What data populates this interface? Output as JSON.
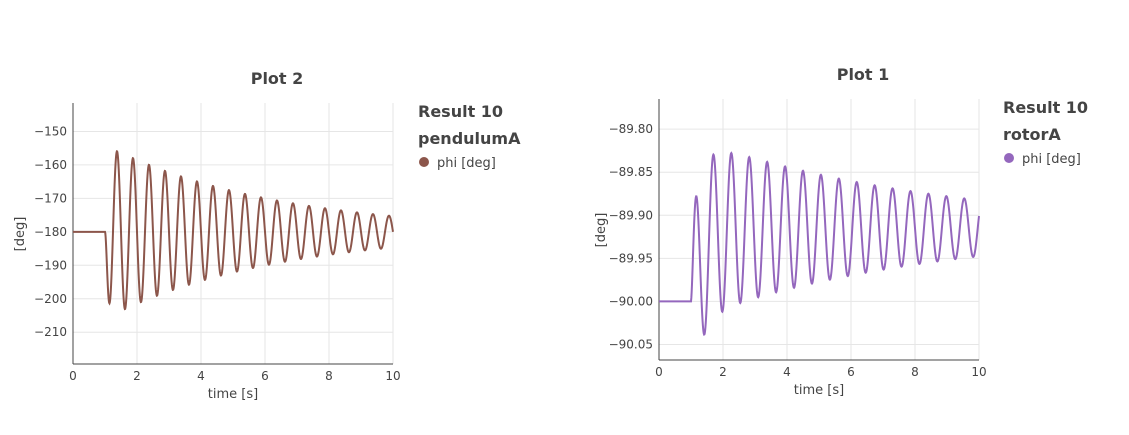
{
  "chart_data": [
    {
      "type": "line",
      "title": "Plot 2",
      "xlabel": "time [s]",
      "ylabel": "[deg]",
      "xlim": [
        0,
        10
      ],
      "ylim": [
        -219.5,
        -141.5
      ],
      "xticks": [
        0,
        2,
        4,
        6,
        8,
        10
      ],
      "yticks": [
        -150,
        -160,
        -170,
        -180,
        -190,
        -200,
        -210
      ],
      "ytick_labels": [
        "−150",
        "−160",
        "−170",
        "−180",
        "−190",
        "−200",
        "−210"
      ],
      "legend": {
        "placement": "top-right outside",
        "title_lines": [
          "Result 10",
          "pendulumA"
        ],
        "entries": [
          "phi [deg]"
        ]
      },
      "grid": true,
      "series": [
        {
          "name": "phi [deg]",
          "color": "#8c564b",
          "signal": {
            "baseline": -180,
            "start": 1.0,
            "end": 10,
            "initial_amplitude": 26,
            "decay_rate": 0.19,
            "period": 0.5,
            "phase_start": "down"
          }
        }
      ]
    },
    {
      "type": "line",
      "title": "Plot 1",
      "xlabel": "time [s]",
      "ylabel": "[deg]",
      "xlim": [
        0,
        10
      ],
      "ylim": [
        -90.068,
        -89.765
      ],
      "xticks": [
        0,
        2,
        4,
        6,
        8,
        10
      ],
      "yticks": [
        -89.8,
        -89.85,
        -89.9,
        -89.95,
        -90.0,
        -90.05
      ],
      "ytick_labels": [
        "−89.80",
        "−89.85",
        "−89.90",
        "−89.95",
        "−90.00",
        "−90.05"
      ],
      "legend": {
        "placement": "top-right outside",
        "title_lines": [
          "Result 10",
          "rotorA"
        ],
        "entries": [
          "phi [deg]"
        ]
      },
      "grid": true,
      "series": [
        {
          "name": "phi [deg]",
          "color": "#9467bd",
          "signal": {
            "start": 1.0,
            "end": 10,
            "initial_level": -90.0,
            "final_center": -89.915,
            "initial_amplitude": 0.105,
            "decay_rate": 0.13,
            "period": 0.56,
            "phase_start": "up"
          }
        }
      ]
    }
  ]
}
